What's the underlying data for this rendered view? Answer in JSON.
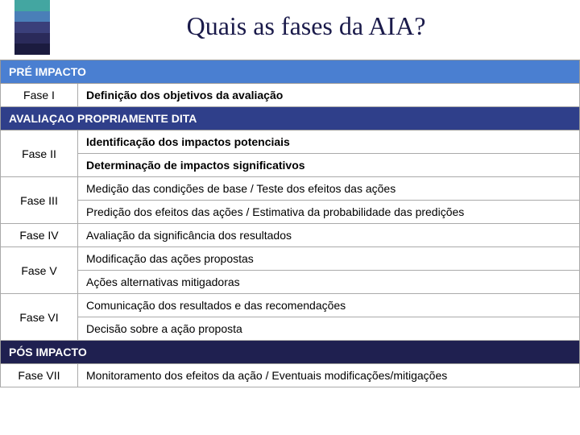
{
  "title": "Quais as fases da AIA?",
  "logo_colors": [
    "#43a6a1",
    "#4a7fb8",
    "#3a3f7a",
    "#2a2a5a",
    "#1b1b3f"
  ],
  "section_colors": {
    "pre": "#4a7fd1",
    "aval": "#2f3f8a",
    "pos": "#1f2050"
  },
  "border_color": "#aaaaaa",
  "text_color": "#000000",
  "title_color": "#1a1a4a",
  "sections": [
    {
      "key": "pre",
      "header": "PRÉ IMPACTO",
      "rows": [
        {
          "phase": "Fase I",
          "items": [
            {
              "text": "Definição dos objetivos da avaliação",
              "strong": true
            }
          ]
        }
      ]
    },
    {
      "key": "aval",
      "header": "AVALIAÇAO PROPRIAMENTE DITA",
      "rows": [
        {
          "phase": "Fase II",
          "items": [
            {
              "text": "Identificação dos impactos potenciais",
              "strong": true
            },
            {
              "text": "Determinação de impactos significativos",
              "strong": true
            }
          ]
        },
        {
          "phase": "Fase III",
          "items": [
            {
              "text": "Medição das condições de base / Teste dos efeitos das ações",
              "strong": false
            },
            {
              "text": "Predição dos efeitos das ações / Estimativa da probabilidade das predições",
              "strong": false
            }
          ]
        },
        {
          "phase": "Fase IV",
          "items": [
            {
              "text": "Avaliação da significância dos resultados",
              "strong": false
            }
          ]
        },
        {
          "phase": "Fase V",
          "items": [
            {
              "text": "Modificação das ações propostas",
              "strong": false
            },
            {
              "text": "Ações alternativas mitigadoras",
              "strong": false
            }
          ]
        },
        {
          "phase": "Fase VI",
          "items": [
            {
              "text": "Comunicação dos resultados e das recomendações",
              "strong": false
            },
            {
              "text": "Decisão sobre a ação proposta",
              "strong": false
            }
          ]
        }
      ]
    },
    {
      "key": "pos",
      "header": "PÓS IMPACTO",
      "rows": [
        {
          "phase": "Fase VII",
          "items": [
            {
              "text": "Monitoramento dos efeitos da ação / Eventuais modificações/mitigações",
              "strong": false
            }
          ]
        }
      ]
    }
  ]
}
